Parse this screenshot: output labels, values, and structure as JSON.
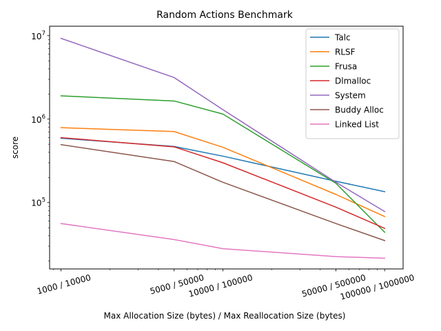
{
  "chart_data": {
    "type": "line",
    "title": "Random Actions Benchmark",
    "xlabel": "Max Allocation Size (bytes) / Max Reallocation Size (bytes)",
    "ylabel": "score",
    "xscale": "log",
    "yscale": "log",
    "x": [
      1000,
      5000,
      10000,
      50000,
      100000
    ],
    "x_tick_labels": [
      "1000 / 10000",
      "5000 / 50000",
      "10000 / 100000",
      "50000 / 500000",
      "100000 / 1000000"
    ],
    "xlim": [
      850,
      130000
    ],
    "ylim": [
      16000,
      13000000
    ],
    "y_major_ticks": [
      {
        "value": 100000,
        "base": "10",
        "exp": "5"
      },
      {
        "value": 1000000,
        "base": "10",
        "exp": "6"
      },
      {
        "value": 10000000,
        "base": "10",
        "exp": "7"
      }
    ],
    "grid": false,
    "legend_position": "upper right",
    "series": [
      {
        "name": "Talc",
        "color": "#1f77b4",
        "values": [
          590000,
          470000,
          360000,
          180000,
          135000
        ]
      },
      {
        "name": "RLSF",
        "color": "#ff7f0e",
        "values": [
          790000,
          710000,
          460000,
          125000,
          68000
        ]
      },
      {
        "name": "Frusa",
        "color": "#2ca02c",
        "values": [
          1900000,
          1650000,
          1150000,
          170000,
          44000
        ]
      },
      {
        "name": "Dlmalloc",
        "color": "#d62728",
        "values": [
          600000,
          465000,
          300000,
          88000,
          49000
        ]
      },
      {
        "name": "System",
        "color": "#9467bd",
        "values": [
          9300000,
          3150000,
          1300000,
          175000,
          78000
        ]
      },
      {
        "name": "Buddy Alloc",
        "color": "#8c564b",
        "values": [
          495000,
          310000,
          175000,
          56000,
          35000
        ]
      },
      {
        "name": "Linked List",
        "color": "#e377c2",
        "values": [
          56000,
          36000,
          28000,
          22500,
          21500
        ]
      }
    ]
  }
}
